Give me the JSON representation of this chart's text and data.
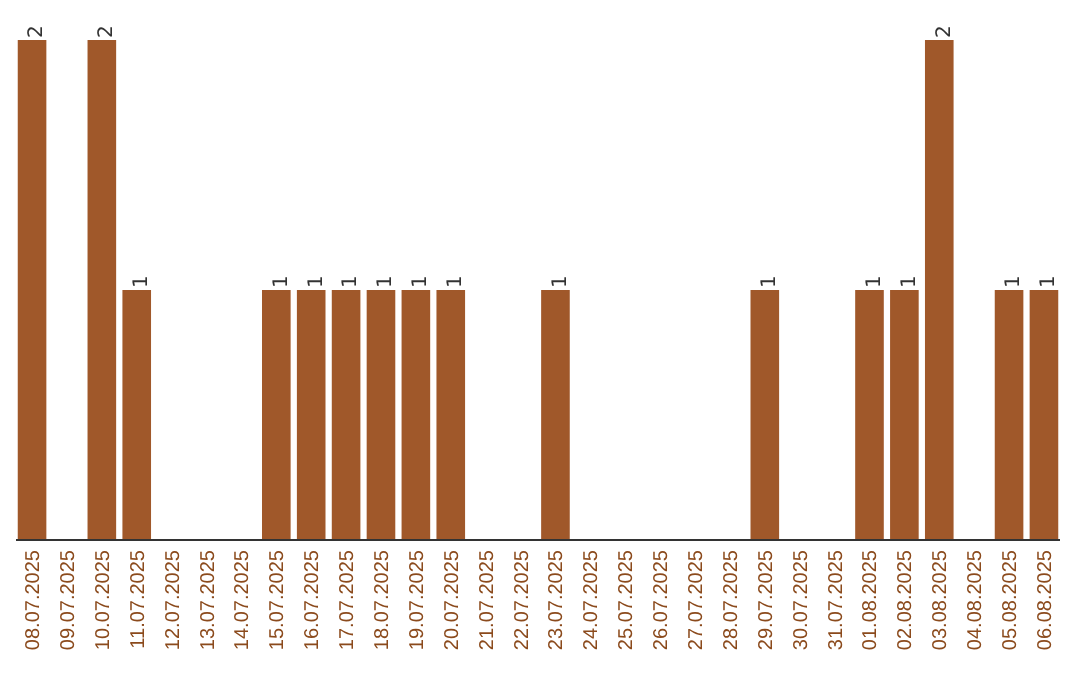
{
  "chart_data": {
    "type": "bar",
    "categories": [
      "08.07.2025",
      "09.07.2025",
      "10.07.2025",
      "11.07.2025",
      "12.07.2025",
      "13.07.2025",
      "14.07.2025",
      "15.07.2025",
      "16.07.2025",
      "17.07.2025",
      "18.07.2025",
      "19.07.2025",
      "20.07.2025",
      "21.07.2025",
      "22.07.2025",
      "23.07.2025",
      "24.07.2025",
      "25.07.2025",
      "26.07.2025",
      "27.07.2025",
      "28.07.2025",
      "29.07.2025",
      "30.07.2025",
      "31.07.2025",
      "01.08.2025",
      "02.08.2025",
      "03.08.2025",
      "04.08.2025",
      "05.08.2025",
      "06.08.2025"
    ],
    "values": [
      2,
      0,
      2,
      1,
      0,
      0,
      0,
      1,
      1,
      1,
      1,
      1,
      1,
      0,
      0,
      1,
      0,
      0,
      0,
      0,
      0,
      1,
      0,
      0,
      1,
      1,
      2,
      0,
      1,
      1
    ],
    "value_labels": [
      "2",
      null,
      "2",
      "1",
      null,
      null,
      null,
      "1",
      "1",
      "1",
      "1",
      "1",
      "1",
      null,
      null,
      "1",
      null,
      null,
      null,
      null,
      null,
      "1",
      null,
      null,
      "1",
      "1",
      "2",
      null,
      "1",
      "1"
    ],
    "color": "#a0582a"
  }
}
